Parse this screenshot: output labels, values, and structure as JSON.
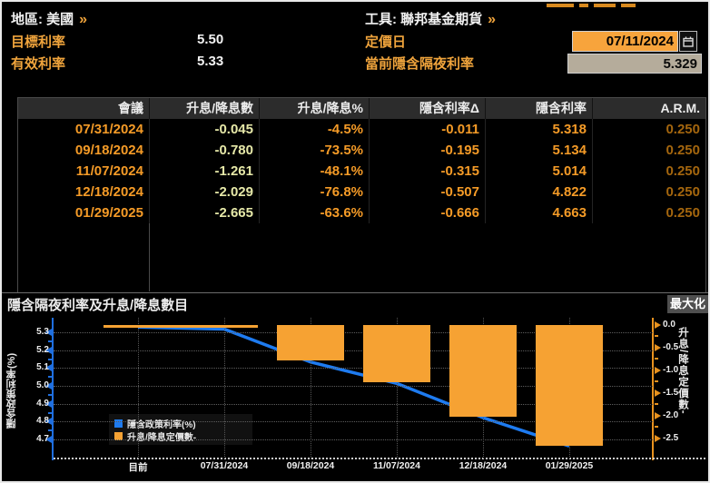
{
  "header": {
    "region": {
      "label": "地區: 美國",
      "chevron": "»"
    },
    "tool": {
      "label": "工具: 聯邦基金期貨",
      "chevron": "»"
    },
    "target_rate": {
      "label": "目標利率",
      "value": "5.50"
    },
    "effective_rate": {
      "label": "有效利率",
      "value": "5.33"
    },
    "pricing_date": {
      "label": "定價日",
      "value": "07/11/2024",
      "icon": "calendar"
    },
    "current_implied": {
      "label": "當前隱含隔夜利率",
      "value": "5.329"
    }
  },
  "table": {
    "columns": [
      "會議",
      "升息/降息數",
      "升息/降息%",
      "隱含利率Δ",
      "隱含利率",
      "A.R.M."
    ],
    "rows": [
      [
        "07/31/2024",
        "-0.045",
        "-4.5%",
        "-0.011",
        "5.318",
        "0.250"
      ],
      [
        "09/18/2024",
        "-0.780",
        "-73.5%",
        "-0.195",
        "5.134",
        "0.250"
      ],
      [
        "11/07/2024",
        "-1.261",
        "-48.1%",
        "-0.315",
        "5.014",
        "0.250"
      ],
      [
        "12/18/2024",
        "-2.029",
        "-76.8%",
        "-0.507",
        "4.822",
        "0.250"
      ],
      [
        "01/29/2025",
        "-2.665",
        "-63.6%",
        "-0.666",
        "4.663",
        "0.250"
      ]
    ]
  },
  "chart_section": {
    "title": "隱含隔夜利率及升息/降息數目",
    "maximize_button": "最大化"
  },
  "chart_data": {
    "type": "line+bar",
    "title": "隱含隔夜利率及升息/降息數目",
    "categories": [
      "目前",
      "07/31/2024",
      "09/18/2024",
      "11/07/2024",
      "12/18/2024",
      "01/29/2025"
    ],
    "series": [
      {
        "name": "隱含政策利率(%)",
        "type": "line",
        "color": "#1e7bf0",
        "values": [
          5.329,
          5.318,
          5.134,
          5.014,
          4.822,
          4.663
        ]
      },
      {
        "name": "升息/降息定價數-",
        "type": "bar",
        "color": "#f6a233",
        "values": [
          null,
          -0.045,
          -0.78,
          -1.261,
          -2.029,
          -2.665
        ]
      }
    ],
    "left_axis": {
      "label": "隱含政策利率(%)",
      "ticks": [
        5.3,
        5.2,
        5.1,
        5.0,
        4.9,
        4.8,
        4.7
      ],
      "range": [
        5.38,
        4.6
      ]
    },
    "right_axis": {
      "label": "升息/降息定價數-",
      "ticks": [
        0.0,
        -0.5,
        -1.0,
        -1.5,
        -2.0,
        -2.5
      ],
      "range": [
        0.1,
        -3.0
      ]
    },
    "legend_position": "bottom-left",
    "grid": "dotted"
  }
}
